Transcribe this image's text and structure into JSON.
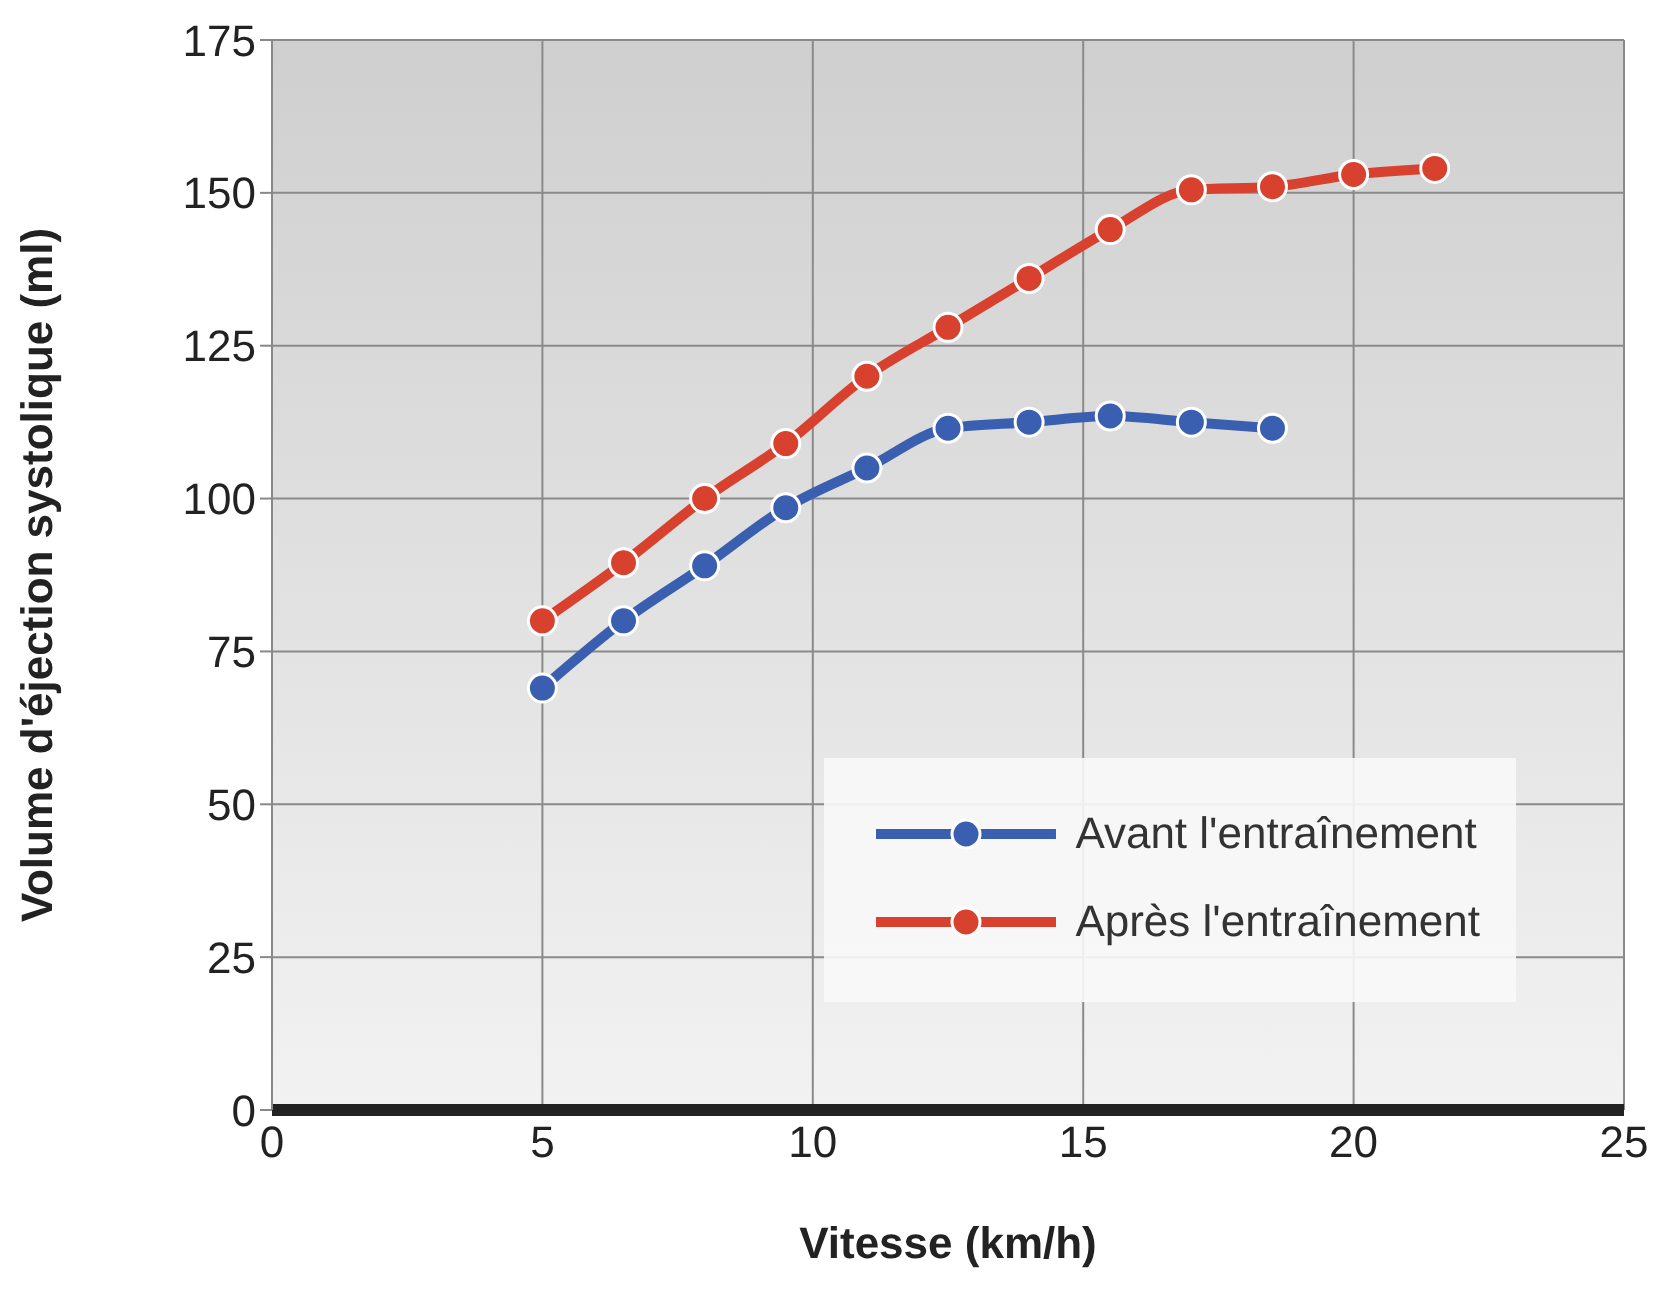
{
  "chart_data": {
    "type": "line",
    "xlabel": "Vitesse (km/h)",
    "ylabel": "Volume d'éjection systolique (ml)",
    "x": [
      5,
      6.5,
      8,
      9.5,
      11,
      12.5,
      14,
      15.5,
      17,
      18.5,
      20,
      21.5
    ],
    "series": [
      {
        "name": "Avant l'entraînement",
        "color": "#3a5fb0",
        "values": [
          69,
          80,
          89,
          98.5,
          105,
          111.5,
          112.5,
          113.5,
          112.5,
          111.5,
          null,
          null
        ]
      },
      {
        "name": "Après l'entraînement",
        "color": "#d9412f",
        "values": [
          80,
          89.5,
          100,
          109,
          120,
          128,
          136,
          144,
          150.5,
          151,
          153,
          154
        ]
      }
    ],
    "xlim": [
      0,
      25
    ],
    "xticks": [
      0,
      5,
      10,
      15,
      20,
      25
    ],
    "ylim": [
      0,
      175
    ],
    "yticks": [
      0,
      25,
      50,
      75,
      100,
      125,
      150,
      175
    ],
    "grid": true,
    "legend": "bottom right",
    "marker": "circle",
    "line_style": "solid"
  }
}
